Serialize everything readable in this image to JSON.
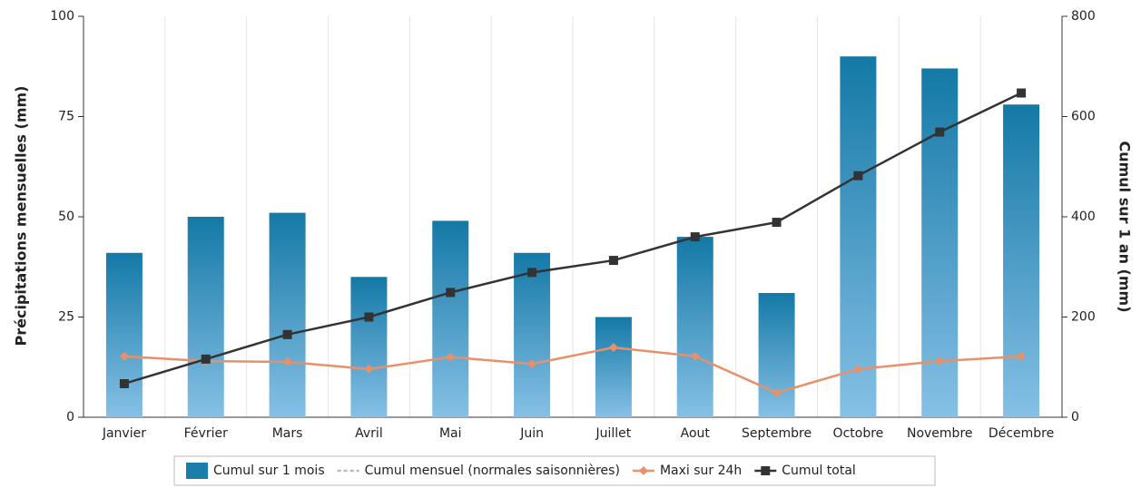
{
  "chart_data": {
    "type": "bar",
    "categories": [
      "Janvier",
      "Février",
      "Mars",
      "Avril",
      "Mai",
      "Juin",
      "Juillet",
      "Aout",
      "Septembre",
      "Octobre",
      "Novembre",
      "Décembre"
    ],
    "y_label": "Précipitations mensuelles (mm)",
    "y2_label": "Cumul sur 1 an (mm)",
    "ylim": [
      0,
      100
    ],
    "yticks": [
      0,
      25,
      50,
      75,
      100
    ],
    "y2lim": [
      0,
      800
    ],
    "y2ticks": [
      0,
      200,
      400,
      600,
      800
    ],
    "series": [
      {
        "name": "Cumul sur 1 mois",
        "type": "bar",
        "color": "#1a7ea8",
        "values": [
          41,
          50,
          51,
          35,
          49,
          41,
          25,
          45,
          31,
          90,
          87,
          78
        ]
      },
      {
        "name": "Cumul mensuel (normales saisonnières)",
        "type": "line",
        "style": "dashed",
        "color": "#bbbbbb",
        "values": [
          null,
          null,
          null,
          null,
          null,
          null,
          null,
          null,
          null,
          null,
          null,
          null
        ]
      },
      {
        "name": "Maxi sur 24h",
        "type": "line",
        "marker": "diamond",
        "color": "#e8906a",
        "values": [
          15.2,
          14,
          13.8,
          12,
          15,
          13.3,
          17.4,
          15.2,
          6.1,
          12,
          14,
          15.2
        ]
      },
      {
        "name": "Cumul total",
        "type": "line",
        "marker": "square",
        "axis": "y2",
        "color": "#333333",
        "values": [
          67,
          116,
          165,
          200,
          249,
          289,
          313,
          360,
          389,
          482,
          569,
          647
        ]
      }
    ]
  }
}
